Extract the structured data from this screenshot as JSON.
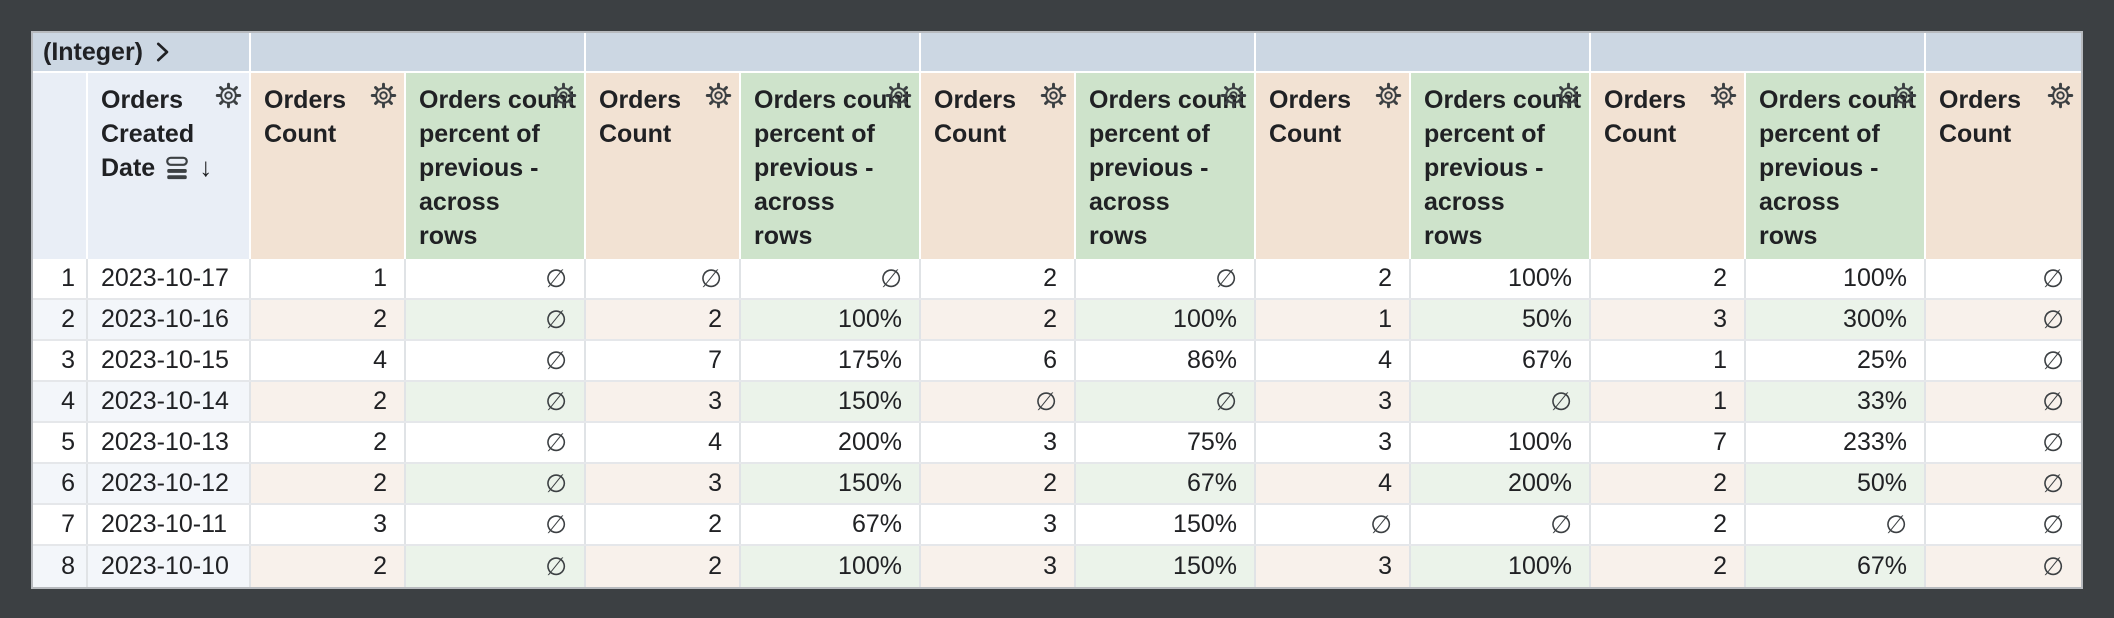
{
  "breadcrumb": {
    "label": "(Integer)"
  },
  "icons": {
    "breadcrumb_expand": "chevron-right-icon",
    "header_settings": "settings-gear-icon",
    "date_header_rows": "table-rows-icon",
    "date_sort": "arrow-down-icon"
  },
  "null_symbol": "∅",
  "sort": {
    "column": "Orders Created Date",
    "direction": "descending"
  },
  "band_segments": [
    {
      "label": "(Integer)",
      "kind": "breadcrumb"
    },
    {
      "label": "",
      "kind": "pair"
    },
    {
      "label": "",
      "kind": "pair"
    },
    {
      "label": "",
      "kind": "pair"
    },
    {
      "label": "",
      "kind": "pair"
    },
    {
      "label": "",
      "kind": "pair"
    },
    {
      "label": "",
      "kind": "last"
    }
  ],
  "columns": [
    {
      "id": "row-index",
      "type": "index",
      "label_lines": [],
      "has_settings": false
    },
    {
      "id": "orders-created-date",
      "type": "date",
      "label_lines": [
        "Orders",
        "Created",
        "Date"
      ],
      "has_settings": true,
      "sort": "descending"
    },
    {
      "id": "orders-count-1",
      "type": "count",
      "label_lines": [
        "Orders",
        "Count"
      ],
      "has_settings": true
    },
    {
      "id": "orders-count-pct-1",
      "type": "pct",
      "label_lines": [
        "Orders count",
        "percent of",
        "previous -",
        "across",
        "rows"
      ],
      "has_settings": true
    },
    {
      "id": "orders-count-2",
      "type": "count",
      "label_lines": [
        "Orders",
        "Count"
      ],
      "has_settings": true
    },
    {
      "id": "orders-count-pct-2",
      "type": "pct",
      "label_lines": [
        "Orders count",
        "percent of",
        "previous -",
        "across",
        "rows"
      ],
      "has_settings": true
    },
    {
      "id": "orders-count-3",
      "type": "count",
      "label_lines": [
        "Orders",
        "Count"
      ],
      "has_settings": true
    },
    {
      "id": "orders-count-pct-3",
      "type": "pct",
      "label_lines": [
        "Orders count",
        "percent of",
        "previous -",
        "across",
        "rows"
      ],
      "has_settings": true
    },
    {
      "id": "orders-count-4",
      "type": "count",
      "label_lines": [
        "Orders",
        "Count"
      ],
      "has_settings": true
    },
    {
      "id": "orders-count-pct-4",
      "type": "pct",
      "label_lines": [
        "Orders count",
        "percent of",
        "previous -",
        "across",
        "rows"
      ],
      "has_settings": true
    },
    {
      "id": "orders-count-5",
      "type": "count",
      "label_lines": [
        "Orders",
        "Count"
      ],
      "has_settings": true
    },
    {
      "id": "orders-count-pct-5",
      "type": "pct",
      "label_lines": [
        "Orders count",
        "percent of",
        "previous -",
        "across",
        "rows"
      ],
      "has_settings": true
    },
    {
      "id": "orders-count-6",
      "type": "count",
      "label_lines": [
        "Orders",
        "Count"
      ],
      "has_settings": true
    }
  ],
  "rows": [
    [
      "1",
      "2023-10-17",
      "1",
      "∅",
      "∅",
      "∅",
      "2",
      "∅",
      "2",
      "100%",
      "2",
      "100%",
      "∅"
    ],
    [
      "2",
      "2023-10-16",
      "2",
      "∅",
      "2",
      "100%",
      "2",
      "100%",
      "1",
      "50%",
      "3",
      "300%",
      "∅"
    ],
    [
      "3",
      "2023-10-15",
      "4",
      "∅",
      "7",
      "175%",
      "6",
      "86%",
      "4",
      "67%",
      "1",
      "25%",
      "∅"
    ],
    [
      "4",
      "2023-10-14",
      "2",
      "∅",
      "3",
      "150%",
      "∅",
      "∅",
      "3",
      "∅",
      "1",
      "33%",
      "∅"
    ],
    [
      "5",
      "2023-10-13",
      "2",
      "∅",
      "4",
      "200%",
      "3",
      "75%",
      "3",
      "100%",
      "7",
      "233%",
      "∅"
    ],
    [
      "6",
      "2023-10-12",
      "2",
      "∅",
      "3",
      "150%",
      "2",
      "67%",
      "4",
      "200%",
      "2",
      "50%",
      "∅"
    ],
    [
      "7",
      "2023-10-11",
      "3",
      "∅",
      "2",
      "67%",
      "3",
      "150%",
      "∅",
      "∅",
      "2",
      "∅",
      "∅"
    ],
    [
      "8",
      "2023-10-10",
      "2",
      "∅",
      "2",
      "100%",
      "3",
      "150%",
      "3",
      "100%",
      "2",
      "67%",
      "∅"
    ]
  ],
  "colors": {
    "canvas_bg": "#3c4043",
    "band_bg": "#ccd7e3",
    "date_header_bg": "#e9eef6",
    "count_header_bg": "#f2e2d3",
    "pct_header_bg": "#cee3cb",
    "stripe_blue": "#f3f6fa",
    "stripe_tan": "#f8f1eb",
    "stripe_green": "#ebf3ea",
    "icon_color": "#3c4043",
    "text_color": "#202124"
  }
}
